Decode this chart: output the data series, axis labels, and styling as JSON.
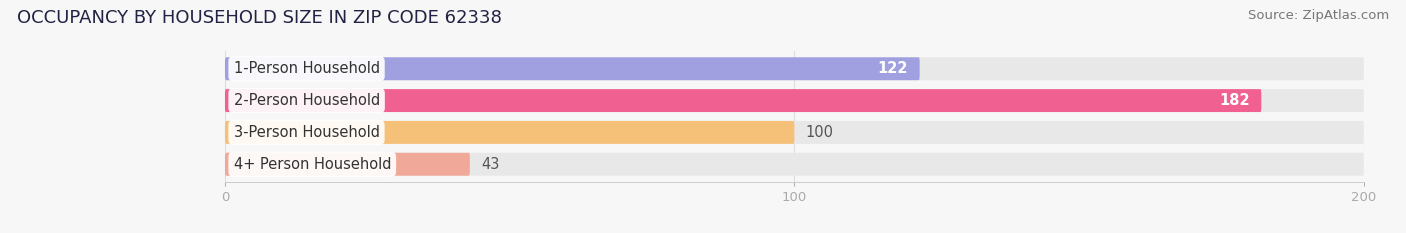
{
  "title": "OCCUPANCY BY HOUSEHOLD SIZE IN ZIP CODE 62338",
  "source": "Source: ZipAtlas.com",
  "categories": [
    "1-Person Household",
    "2-Person Household",
    "3-Person Household",
    "4+ Person Household"
  ],
  "values": [
    122,
    182,
    100,
    43
  ],
  "bar_colors": [
    "#a0a0e0",
    "#f06090",
    "#f5c078",
    "#f0a898"
  ],
  "bar_bg_color": "#e8e8e8",
  "value_inside": [
    true,
    true,
    false,
    false
  ],
  "value_colors_inside": [
    "#ffffff",
    "#ffffff",
    "#555555",
    "#555555"
  ],
  "xlim": [
    0,
    200
  ],
  "xticks": [
    0,
    100,
    200
  ],
  "title_fontsize": 13,
  "source_fontsize": 9.5,
  "label_fontsize": 10.5,
  "value_fontsize": 10.5,
  "bar_height": 0.72,
  "bar_gap": 0.28,
  "figsize": [
    14.06,
    2.33
  ],
  "dpi": 100,
  "bg_color": "#f7f7f7"
}
